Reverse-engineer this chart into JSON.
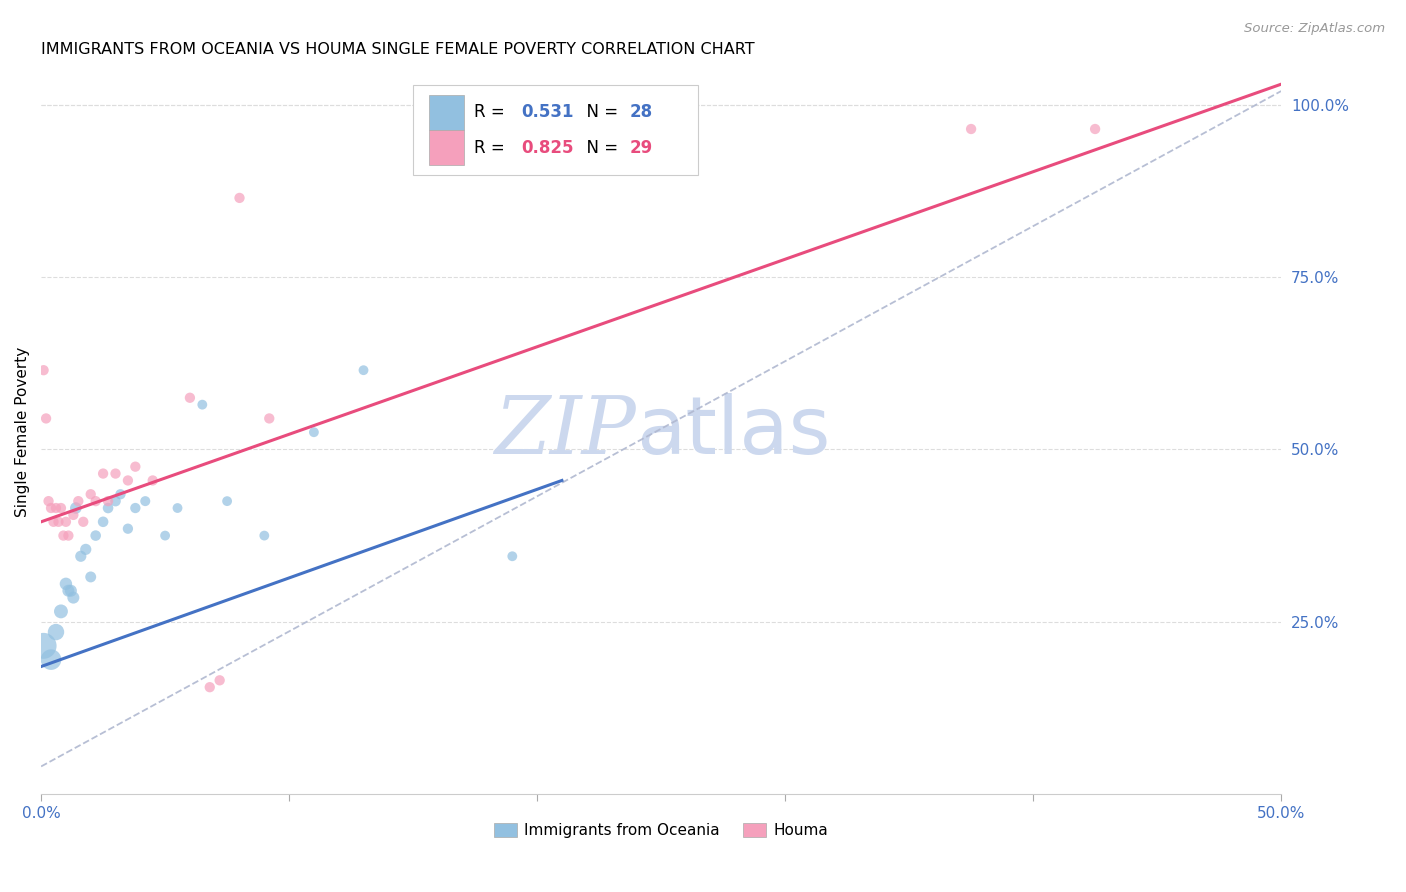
{
  "title": "IMMIGRANTS FROM OCEANIA VS HOUMA SINGLE FEMALE POVERTY CORRELATION CHART",
  "source": "Source: ZipAtlas.com",
  "ylabel": "Single Female Poverty",
  "xlim": [
    0.0,
    0.5
  ],
  "ylim": [
    0.0,
    1.05
  ],
  "xtick_pos": [
    0.0,
    0.1,
    0.2,
    0.3,
    0.4,
    0.5
  ],
  "xtick_labels": [
    "0.0%",
    "",
    "",
    "",
    "",
    "50.0%"
  ],
  "ytick_positions_right": [
    0.25,
    0.5,
    0.75,
    1.0
  ],
  "ytick_labels_right": [
    "25.0%",
    "50.0%",
    "75.0%",
    "100.0%"
  ],
  "legend_r1": "0.531",
  "legend_n1": "28",
  "legend_r2": "0.825",
  "legend_n2": "29",
  "legend_label1": "Immigrants from Oceania",
  "legend_label2": "Houma",
  "color_blue": "#92c0e0",
  "color_pink": "#f5a0bc",
  "color_blue_line": "#4472c4",
  "color_pink_line": "#e84c7d",
  "color_dashed": "#b0b8d0",
  "watermark_zip": "ZIP",
  "watermark_atlas": "atlas",
  "watermark_color": "#ccd8ee",
  "oceania_x": [
    0.001,
    0.004,
    0.006,
    0.008,
    0.01,
    0.011,
    0.012,
    0.013,
    0.014,
    0.016,
    0.018,
    0.02,
    0.022,
    0.025,
    0.027,
    0.03,
    0.032,
    0.035,
    0.038,
    0.042,
    0.05,
    0.055,
    0.065,
    0.075,
    0.09,
    0.11,
    0.13,
    0.19
  ],
  "oceania_y": [
    0.215,
    0.195,
    0.235,
    0.265,
    0.305,
    0.295,
    0.295,
    0.285,
    0.415,
    0.345,
    0.355,
    0.315,
    0.375,
    0.395,
    0.415,
    0.425,
    0.435,
    0.385,
    0.415,
    0.425,
    0.375,
    0.415,
    0.565,
    0.425,
    0.375,
    0.525,
    0.615,
    0.345
  ],
  "oceania_sizes": [
    350,
    220,
    140,
    100,
    80,
    75,
    75,
    75,
    70,
    65,
    65,
    62,
    58,
    58,
    58,
    58,
    55,
    55,
    55,
    52,
    50,
    50,
    50,
    50,
    50,
    50,
    50,
    50
  ],
  "houma_x": [
    0.001,
    0.002,
    0.003,
    0.004,
    0.005,
    0.006,
    0.007,
    0.008,
    0.009,
    0.01,
    0.011,
    0.013,
    0.015,
    0.017,
    0.02,
    0.022,
    0.025,
    0.027,
    0.03,
    0.035,
    0.038,
    0.045,
    0.06,
    0.068,
    0.072,
    0.08,
    0.092,
    0.375,
    0.425
  ],
  "houma_y": [
    0.615,
    0.545,
    0.425,
    0.415,
    0.395,
    0.415,
    0.395,
    0.415,
    0.375,
    0.395,
    0.375,
    0.405,
    0.425,
    0.395,
    0.435,
    0.425,
    0.465,
    0.425,
    0.465,
    0.455,
    0.475,
    0.455,
    0.575,
    0.155,
    0.165,
    0.865,
    0.545,
    0.965,
    0.965
  ],
  "houma_sizes": [
    55,
    55,
    55,
    55,
    55,
    55,
    55,
    55,
    55,
    55,
    55,
    55,
    55,
    55,
    55,
    55,
    55,
    55,
    55,
    55,
    55,
    55,
    55,
    55,
    55,
    55,
    55,
    55,
    55
  ],
  "blue_line_x0": 0.0,
  "blue_line_x1": 0.21,
  "blue_line_y0": 0.185,
  "blue_line_y1": 0.455,
  "pink_line_x0": 0.0,
  "pink_line_x1": 0.5,
  "pink_line_y0": 0.395,
  "pink_line_y1": 1.03,
  "dashed_line_x0": 0.0,
  "dashed_line_x1": 0.5,
  "dashed_line_y0": 0.04,
  "dashed_line_y1": 1.02
}
